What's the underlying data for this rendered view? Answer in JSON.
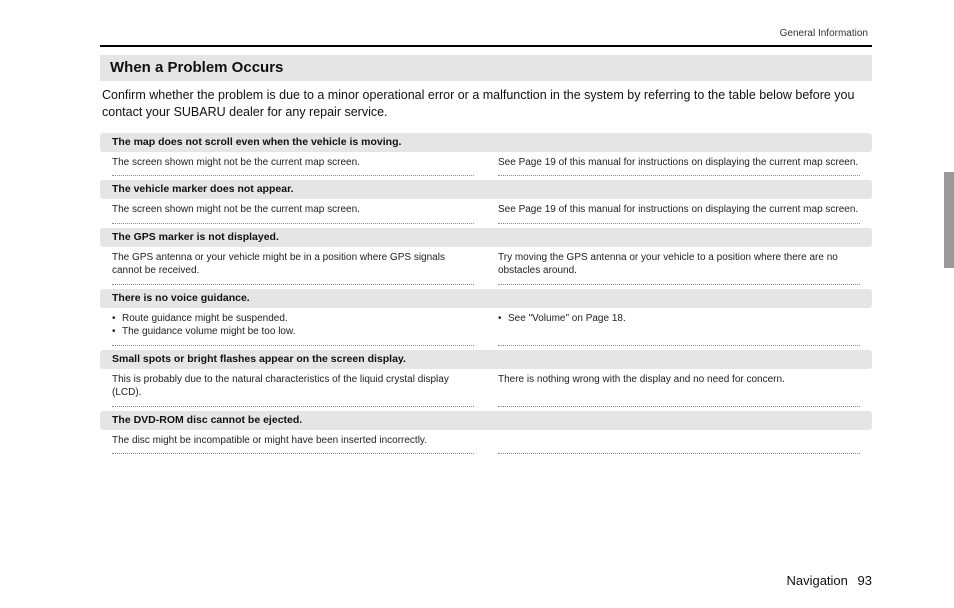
{
  "header_label": "General Information",
  "section_title": "When a Problem Occurs",
  "intro": "Confirm whether the problem is due to a minor operational error or a malfunction in the system by referring to the table below before you contact your SUBARU dealer for any repair service.",
  "problems": [
    {
      "title": "The map does not scroll even when the vehicle is moving.",
      "left": "The screen shown might not be the current map screen.",
      "right": "See Page 19 of this manual for instructions on displaying the current map screen."
    },
    {
      "title": "The vehicle marker does not appear.",
      "left": "The screen shown might not be the current map screen.",
      "right": "See Page 19 of this manual for instructions on displaying the current map screen."
    },
    {
      "title": "The GPS marker is not displayed.",
      "left": "The GPS antenna or your vehicle might be in a position where GPS signals cannot be received.",
      "right": "Try moving the GPS antenna or your vehicle to a position where there are no obstacles around."
    },
    {
      "title": "There is no voice guidance.",
      "left_bullets": [
        "Route guidance might be suspended.",
        "The guidance volume might be too low."
      ],
      "right_bullets": [
        "See \"Volume\" on Page 18."
      ]
    },
    {
      "title": "Small spots or bright flashes appear on the screen display.",
      "left": "This is probably due to the natural characteristics of the liquid crystal display (LCD).",
      "right": "There is nothing wrong with the display and no need for concern."
    },
    {
      "title": "The DVD-ROM disc cannot be ejected.",
      "left": "The disc might be incompatible or might have been inserted incorrectly.",
      "right": ""
    }
  ],
  "footer_section": "Navigation",
  "footer_page": "93",
  "colors": {
    "bar_bg": "#e5e5e5",
    "rule": "#000000",
    "dotted": "#888888",
    "side_tab": "#9a9a9a",
    "text": "#1a1a1a"
  }
}
